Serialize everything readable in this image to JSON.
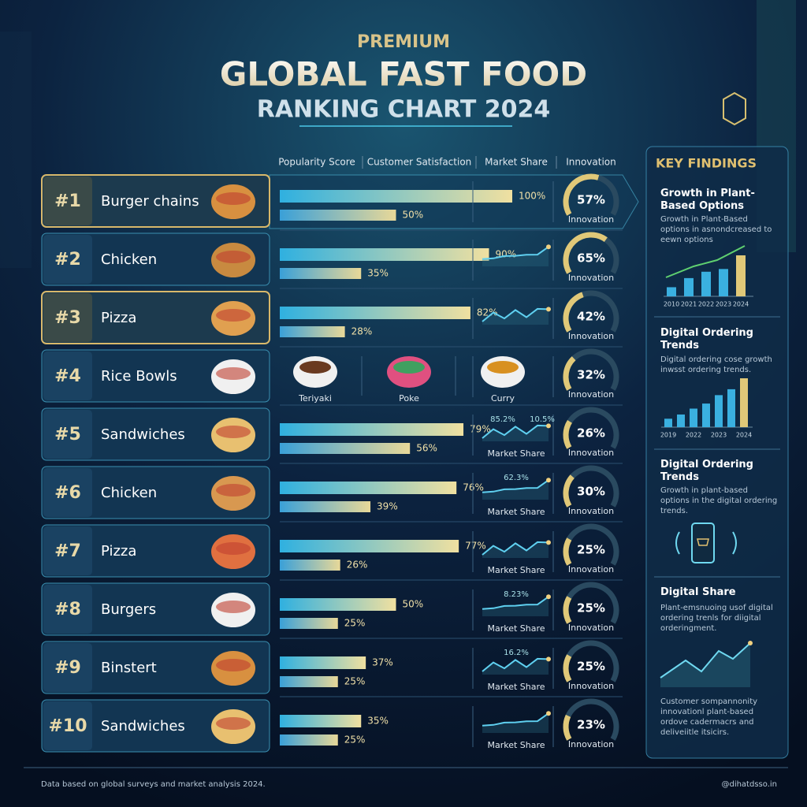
{
  "header": {
    "kicker": "PREMIUM",
    "title_line1": "GLOBAL FAST FOOD",
    "title_line2": "RANKING CHART 2024"
  },
  "columns": [
    "Popularity Score",
    "Customer Satisfaction",
    "Market Share",
    "Innovation"
  ],
  "rows": [
    {
      "rank": "#1",
      "name": "Burger chains",
      "popularity": {
        "value": 100,
        "label": "100%"
      },
      "satisfaction": {
        "value": 50,
        "label": "50%"
      },
      "innovation": {
        "value": 57,
        "label": "57%"
      },
      "innovation_caption": "Innovation"
    },
    {
      "rank": "#2",
      "name": "Chicken",
      "popularity": {
        "value": 90,
        "label": "90%"
      },
      "satisfaction": {
        "value": 35,
        "label": "35%"
      },
      "innovation": {
        "value": 65,
        "label": "65%"
      },
      "innovation_caption": "Innovation"
    },
    {
      "rank": "#3",
      "name": "Pizza",
      "popularity": {
        "value": 82,
        "label": "82%"
      },
      "satisfaction": {
        "value": 28,
        "label": "28%"
      },
      "innovation": {
        "value": 42,
        "label": "42%"
      },
      "innovation_caption": "Innovation"
    },
    {
      "rank": "#4",
      "name": "Rice Bowls",
      "dishes": [
        "Teriyaki",
        "Poke",
        "Curry"
      ],
      "innovation": {
        "value": 32,
        "label": "32%"
      },
      "innovation_caption": "Innovation"
    },
    {
      "rank": "#5",
      "name": "Sandwiches",
      "popularity": {
        "value": 79,
        "label": "79%"
      },
      "satisfaction": {
        "value": 56,
        "label": "56%"
      },
      "market_share_labels": [
        "85.2%",
        "10.5%"
      ],
      "market_share_caption": "Market Share",
      "innovation": {
        "value": 26,
        "label": "26%"
      },
      "innovation_caption": "Innovation"
    },
    {
      "rank": "#6",
      "name": "Chicken",
      "popularity": {
        "value": 76,
        "label": "76%"
      },
      "satisfaction": {
        "value": 39,
        "label": "39%"
      },
      "market_share_labels": [
        "62.3%"
      ],
      "market_share_caption": "Market Share",
      "innovation": {
        "value": 30,
        "label": "30%"
      },
      "innovation_caption": "Innovation"
    },
    {
      "rank": "#7",
      "name": "Pizza",
      "popularity": {
        "value": 77,
        "label": "77%"
      },
      "satisfaction": {
        "value": 26,
        "label": "26%"
      },
      "market_share_caption": "Market Share",
      "innovation": {
        "value": 25,
        "label": "25%"
      },
      "innovation_caption": "Innovation"
    },
    {
      "rank": "#8",
      "name": "Burgers",
      "popularity": {
        "value": 50,
        "label": "50%"
      },
      "satisfaction": {
        "value": 25,
        "label": "25%"
      },
      "market_share_labels": [
        "8.23%"
      ],
      "market_share_caption": "Market Share",
      "innovation": {
        "value": 25,
        "label": "25%"
      },
      "innovation_caption": "Innovation"
    },
    {
      "rank": "#9",
      "name": "Binstert",
      "popularity": {
        "value": 37,
        "label": "37%"
      },
      "satisfaction": {
        "value": 25,
        "label": "25%"
      },
      "market_share_labels": [
        "16.2%"
      ],
      "market_share_caption": "Market Share",
      "innovation": {
        "value": 25,
        "label": "25%"
      },
      "innovation_caption": "Innovation"
    },
    {
      "rank": "#10",
      "name": "Sandwiches",
      "popularity": {
        "value": 35,
        "label": "35%"
      },
      "satisfaction": {
        "value": 25,
        "label": "25%"
      },
      "market_share_caption": "Market Share",
      "innovation": {
        "value": 23,
        "label": "23%"
      },
      "innovation_caption": "Innovation"
    }
  ],
  "sidebar": {
    "title": "KEY FINDINGS",
    "sections": [
      {
        "heading": "Growth in Plant-Based Options",
        "text": "Growth in Plant-Based options in asnondcreased to eewn options",
        "chart": {
          "categories": [
            "2010",
            "2021",
            "2022",
            "2023",
            "2024"
          ],
          "values": [
            10,
            20,
            27,
            30,
            45
          ]
        }
      },
      {
        "heading": "Digital Ordering Trends",
        "text": "Digital ordering cose growth inwsst ordering trends.",
        "chart": {
          "categories": [
            "2019",
            null,
            "2022",
            null,
            "2023",
            null,
            "2024"
          ],
          "values": [
            10,
            15,
            22,
            28,
            38,
            45,
            58
          ]
        }
      },
      {
        "heading": "Digital Ordering Trends",
        "text": "Growth in plant-based options in the digital ordering trends."
      },
      {
        "heading": "Digital Share",
        "text": "Plant-emsnuoing usof digital ordering trenls for diigital orderingment."
      }
    ],
    "note": "Customer sompannonity innovationl plant-based ordove cadermacrs and deliveiitle itsicirs."
  },
  "footer": {
    "source": "Data based on global surveys and market analysis 2024.",
    "handle": "@dihatdsso.in"
  }
}
